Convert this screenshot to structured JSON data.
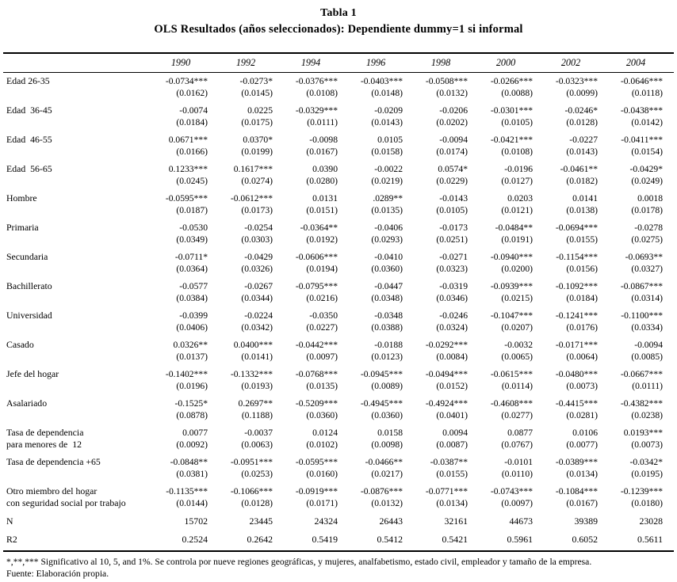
{
  "title": {
    "line1": "Tabla 1",
    "line2": "OLS Resultados (años seleccionados): Dependiente dummy=1 si informal"
  },
  "table": {
    "year_headers": [
      "1990",
      "1992",
      "1994",
      "1996",
      "1998",
      "2000",
      "2002",
      "2004"
    ],
    "rows": [
      {
        "label": "Edad 26-35",
        "label2": "",
        "coefs": [
          "-0.0734***",
          "-0.0273*",
          "-0.0376***",
          "-0.0403***",
          "-0.0508***",
          "-0.0266***",
          "-0.0323***",
          "-0.0646***"
        ],
        "ses": [
          "(0.0162)",
          "(0.0145)",
          "(0.0108)",
          "(0.0148)",
          "(0.0132)",
          "(0.0088)",
          "(0.0099)",
          "(0.0118)"
        ]
      },
      {
        "label": "Edad  36-45",
        "label2": "",
        "coefs": [
          "-0.0074",
          "0.0225",
          "-0.0329***",
          "-0.0209",
          "-0.0206",
          "-0.0301***",
          "-0.0246*",
          "-0.0438***"
        ],
        "ses": [
          "(0.0184)",
          "(0.0175)",
          "(0.0111)",
          "(0.0143)",
          "(0.0202)",
          "(0.0105)",
          "(0.0128)",
          "(0.0142)"
        ]
      },
      {
        "label": "Edad  46-55",
        "label2": "",
        "coefs": [
          "0.0671***",
          "0.0370*",
          "-0.0098",
          "0.0105",
          "-0.0094",
          "-0.0421***",
          "-0.0227",
          "-0.0411***"
        ],
        "ses": [
          "(0.0166)",
          "(0.0199)",
          "(0.0167)",
          "(0.0158)",
          "(0.0174)",
          "(0.0108)",
          "(0.0143)",
          "(0.0154)"
        ]
      },
      {
        "label": "Edad  56-65",
        "label2": "",
        "coefs": [
          "0.1233***",
          "0.1617***",
          "0.0390",
          "-0.0022",
          "0.0574*",
          "-0.0196",
          "-0.0461**",
          "-0.0429*"
        ],
        "ses": [
          "(0.0245)",
          "(0.0274)",
          "(0.0280)",
          "(0.0219)",
          "(0.0229)",
          "(0.0127)",
          "(0.0182)",
          "(0.0249)"
        ]
      },
      {
        "label": "Hombre",
        "label2": "",
        "coefs": [
          "-0.0595***",
          "-0.0612***",
          "0.0131",
          ".0289**",
          "-0.0143",
          "0.0203",
          "0.0141",
          "0.0018"
        ],
        "ses": [
          "(0.0187)",
          "(0.0173)",
          "(0.0151)",
          "(0.0135)",
          "(0.0105)",
          "(0.0121)",
          "(0.0138)",
          "(0.0178)"
        ]
      },
      {
        "label": "Primaria",
        "label2": "",
        "coefs": [
          "-0.0530",
          "-0.0254",
          "-0.0364**",
          "-0.0406",
          "-0.0173",
          "-0.0484**",
          "-0.0694***",
          "-0.0278"
        ],
        "ses": [
          "(0.0349)",
          "(0.0303)",
          "(0.0192)",
          "(0.0293)",
          "(0.0251)",
          "(0.0191)",
          "(0.0155)",
          "(0.0275)"
        ]
      },
      {
        "label": "Secundaria",
        "label2": "",
        "coefs": [
          "-0.0711*",
          "-0.0429",
          "-0.0606***",
          "-0.0410",
          "-0.0271",
          "-0.0940***",
          "-0.1154***",
          "-0.0693**"
        ],
        "ses": [
          "(0.0364)",
          "(0.0326)",
          "(0.0194)",
          "(0.0360)",
          "(0.0323)",
          "(0.0200)",
          "(0.0156)",
          "(0.0327)"
        ]
      },
      {
        "label": "Bachillerato",
        "label2": "",
        "coefs": [
          "-0.0577",
          "-0.0267",
          "-0.0795***",
          "-0.0447",
          "-0.0319",
          "-0.0939***",
          "-0.1092***",
          "-0.0867***"
        ],
        "ses": [
          "(0.0384)",
          "(0.0344)",
          "(0.0216)",
          "(0.0348)",
          "(0.0346)",
          "(0.0215)",
          "(0.0184)",
          "(0.0314)"
        ]
      },
      {
        "label": "Universidad",
        "label2": "",
        "coefs": [
          "-0.0399",
          "-0.0224",
          "-0.0350",
          "-0.0348",
          "-0.0246",
          "-0.1047***",
          "-0.1241***",
          "-0.1100***"
        ],
        "ses": [
          "(0.0406)",
          "(0.0342)",
          "(0.0227)",
          "(0.0388)",
          "(0.0324)",
          "(0.0207)",
          "(0.0176)",
          "(0.0334)"
        ]
      },
      {
        "label": "Casado",
        "label2": "",
        "coefs": [
          "0.0326**",
          "0.0400***",
          "-0.0442***",
          "-0.0188",
          "-0.0292***",
          "-0.0032",
          "-0.0171***",
          "-0.0094"
        ],
        "ses": [
          "(0.0137)",
          "(0.0141)",
          "(0.0097)",
          "(0.0123)",
          "(0.0084)",
          "(0.0065)",
          "(0.0064)",
          "(0.0085)"
        ]
      },
      {
        "label": "Jefe del hogar",
        "label2": "",
        "coefs": [
          "-0.1402***",
          "-0.1332***",
          "-0.0768***",
          "-0.0945***",
          "-0.0494***",
          "-0.0615***",
          "-0.0480***",
          "-0.0667***"
        ],
        "ses": [
          "(0.0196)",
          "(0.0193)",
          "(0.0135)",
          "(0.0089)",
          "(0.0152)",
          "(0.0114)",
          "(0.0073)",
          "(0.0111)"
        ]
      },
      {
        "label": "Asalariado",
        "label2": "",
        "coefs": [
          "-0.1525*",
          "0.2697**",
          "-0.5209***",
          "-0.4945***",
          "-0.4924***",
          "-0.4608***",
          "-0.4415***",
          "-0.4382***"
        ],
        "ses": [
          "(0.0878)",
          "(0.1188)",
          "(0.0360)",
          "(0.0360)",
          "(0.0401)",
          "(0.0277)",
          "(0.0281)",
          "(0.0238)"
        ]
      },
      {
        "label": "Tasa de dependencia",
        "label2": "para menores de  12",
        "coefs": [
          "0.0077",
          "-0.0037",
          "0.0124",
          "0.0158",
          "0.0094",
          "0.0877",
          "0.0106",
          "0.0193***"
        ],
        "ses": [
          "(0.0092)",
          "(0.0063)",
          "(0.0102)",
          "(0.0098)",
          "(0.0087)",
          "(0.0767)",
          "(0.0077)",
          "(0.0073)"
        ]
      },
      {
        "label": "Tasa de dependencia +65",
        "label2": "",
        "coefs": [
          "-0.0848**",
          "-0.0951***",
          "-0.0595***",
          "-0.0466**",
          "-0.0387**",
          "-0.0101",
          "-0.0389***",
          "-0.0342*"
        ],
        "ses": [
          "(0.0381)",
          "(0.0253)",
          "(0.0160)",
          "(0.0217)",
          "(0.0155)",
          "(0.0110)",
          "(0.0134)",
          "(0.0195)"
        ]
      },
      {
        "label": "Otro miembro del hogar",
        "label2": "con seguridad social por trabajo",
        "coefs": [
          "-0.1135***",
          "-0.1066***",
          "-0.0919***",
          "-0.0876***",
          "-0.0771***",
          "-0.0743***",
          "-0.1084***",
          "-0.1239***"
        ],
        "ses": [
          "(0.0144)",
          "(0.0128)",
          "(0.0171)",
          "(0.0132)",
          "(0.0134)",
          "(0.0097)",
          "(0.0167)",
          "(0.0180)"
        ]
      }
    ],
    "summary_rows": [
      {
        "label": "N",
        "values": [
          "15702",
          "23445",
          "24324",
          "26443",
          "32161",
          "44673",
          "39389",
          "23028"
        ]
      },
      {
        "label": "R2",
        "values": [
          "0.2524",
          "0.2642",
          "0.5419",
          "0.5412",
          "0.5421",
          "0.5961",
          "0.6052",
          "0.5611"
        ]
      }
    ]
  },
  "footnote": {
    "line1": "*,**,*** Significativo al 10, 5, and 1%. Se controla por nueve regiones geográficas, y mujeres, analfabetismo, estado civil, empleador y tamaño de la empresa.",
    "line2": "Fuente: Elaboración propia."
  }
}
